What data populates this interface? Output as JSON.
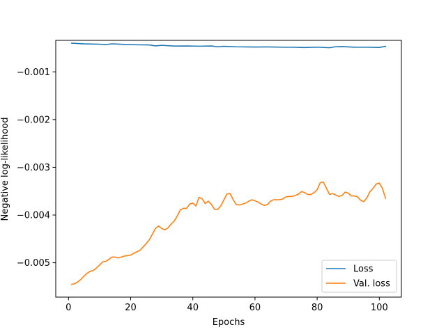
{
  "chart_data": {
    "type": "line",
    "title": "",
    "xlabel": "Epochs",
    "ylabel": "Negative log-likelihood",
    "xlim": [
      -4.1,
      107.1
    ],
    "ylim": [
      -0.00572,
      -0.00034
    ],
    "xticks": [
      0,
      20,
      40,
      60,
      80,
      100
    ],
    "xtick_labels": [
      "0",
      "20",
      "40",
      "60",
      "80",
      "100"
    ],
    "yticks": [
      -0.005,
      -0.004,
      -0.003,
      -0.002,
      -0.001
    ],
    "ytick_labels": [
      "−0.005",
      "−0.004",
      "−0.003",
      "−0.002",
      "−0.001"
    ],
    "grid": false,
    "legend": "lower-right",
    "series": [
      {
        "name": "Loss",
        "color": "#1f77b4",
        "x": [
          1,
          5,
          10,
          12,
          14,
          18,
          22,
          26,
          28,
          30,
          34,
          38,
          42,
          46,
          48,
          50,
          54,
          60,
          64,
          70,
          72,
          76,
          80,
          84,
          86,
          88,
          92,
          96,
          100,
          102
        ],
        "y": [
          -0.000399,
          -0.000414,
          -0.00042,
          -0.000429,
          -0.000413,
          -0.000425,
          -0.000433,
          -0.000436,
          -0.000456,
          -0.000444,
          -0.00046,
          -0.000458,
          -0.000462,
          -0.000458,
          -0.000475,
          -0.000465,
          -0.000475,
          -0.00048,
          -0.000477,
          -0.000484,
          -0.000484,
          -0.00049,
          -0.000482,
          -0.000495,
          -0.000473,
          -0.00047,
          -0.000483,
          -0.000484,
          -0.000488,
          -0.000465
        ]
      },
      {
        "name": "Val. loss",
        "color": "#ff7f0e",
        "x": [
          1,
          2,
          3,
          4,
          5,
          6,
          7,
          8,
          9,
          10,
          11,
          12,
          13,
          14,
          15,
          16,
          17,
          18,
          19,
          20,
          21,
          22,
          23,
          24,
          25,
          26,
          27,
          28,
          29,
          30,
          31,
          32,
          33,
          34,
          35,
          36,
          37,
          38,
          39,
          40,
          41,
          42,
          43,
          44,
          45,
          46,
          47,
          48,
          49,
          50,
          51,
          52,
          53,
          54,
          55,
          56,
          57,
          58,
          59,
          60,
          61,
          62,
          63,
          64,
          65,
          66,
          67,
          68,
          69,
          70,
          71,
          72,
          73,
          74,
          75,
          76,
          77,
          78,
          79,
          80,
          81,
          82,
          83,
          84,
          85,
          86,
          87,
          88,
          89,
          90,
          91,
          92,
          93,
          94,
          95,
          96,
          97,
          98,
          99,
          100,
          101,
          102
        ],
        "y": [
          -0.00545,
          -0.00544,
          -0.0054,
          -0.00535,
          -0.00528,
          -0.00522,
          -0.00518,
          -0.00516,
          -0.00511,
          -0.00505,
          -0.00498,
          -0.00497,
          -0.00493,
          -0.00488,
          -0.00488,
          -0.0049,
          -0.00488,
          -0.00486,
          -0.00485,
          -0.00484,
          -0.0048,
          -0.00477,
          -0.00474,
          -0.00467,
          -0.0046,
          -0.00452,
          -0.0044,
          -0.00428,
          -0.00423,
          -0.00428,
          -0.00431,
          -0.00427,
          -0.00419,
          -0.00413,
          -0.00402,
          -0.00389,
          -0.00386,
          -0.00386,
          -0.00377,
          -0.00375,
          -0.00381,
          -0.00363,
          -0.00366,
          -0.00376,
          -0.00371,
          -0.00378,
          -0.00388,
          -0.00388,
          -0.00381,
          -0.00368,
          -0.00356,
          -0.00355,
          -0.00368,
          -0.00378,
          -0.00379,
          -0.00377,
          -0.00375,
          -0.00371,
          -0.00368,
          -0.0037,
          -0.00373,
          -0.00377,
          -0.0038,
          -0.00378,
          -0.00371,
          -0.00368,
          -0.00368,
          -0.00368,
          -0.00366,
          -0.00362,
          -0.00361,
          -0.00361,
          -0.00359,
          -0.00356,
          -0.00351,
          -0.00353,
          -0.00357,
          -0.00357,
          -0.00353,
          -0.00347,
          -0.00332,
          -0.00331,
          -0.00344,
          -0.00357,
          -0.00355,
          -0.00358,
          -0.00361,
          -0.00359,
          -0.00352,
          -0.00354,
          -0.0036,
          -0.0036,
          -0.00362,
          -0.00369,
          -0.00372,
          -0.00364,
          -0.00351,
          -0.00344,
          -0.00335,
          -0.00333,
          -0.00344,
          -0.00365
        ]
      }
    ]
  }
}
